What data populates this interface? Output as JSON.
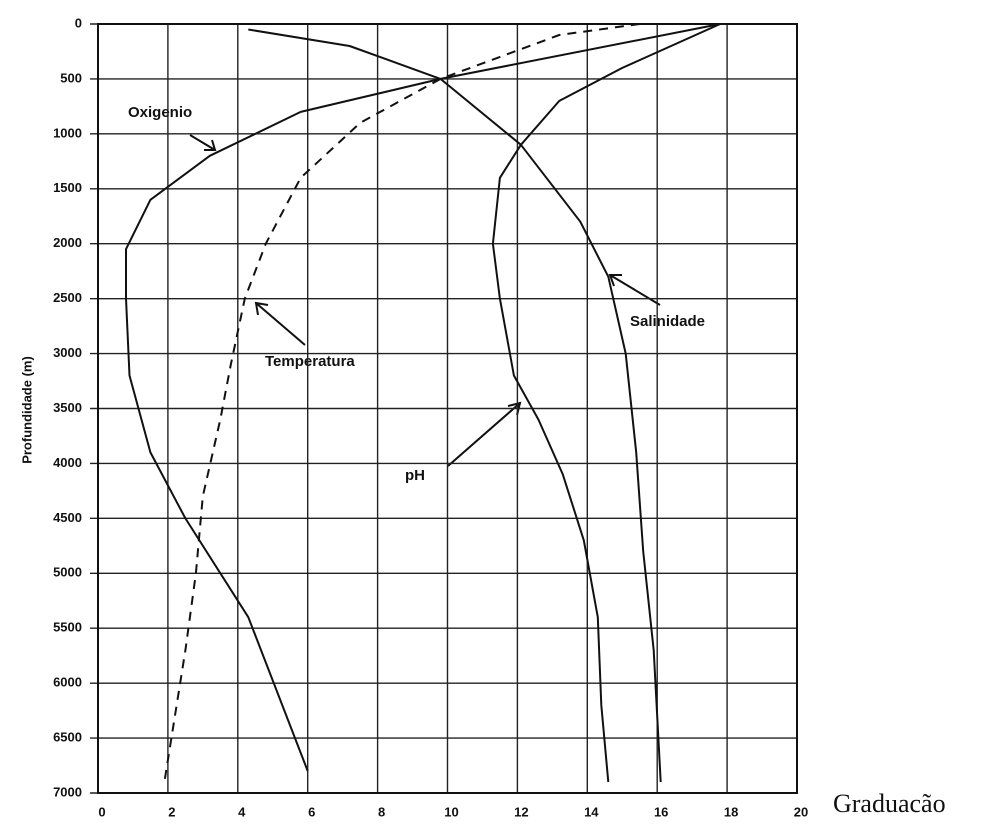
{
  "chart_data": {
    "type": "line",
    "y_label": "Profundidade (m)",
    "x_label": "Graduacão",
    "xlim": [
      0,
      20
    ],
    "xticks": [
      0,
      2,
      4,
      6,
      8,
      10,
      12,
      14,
      16,
      18,
      20
    ],
    "ylim": [
      0,
      7000
    ],
    "yticks": [
      0,
      500,
      1000,
      1500,
      2000,
      2500,
      3000,
      3500,
      4000,
      4500,
      5000,
      5500,
      6000,
      6500,
      7000
    ],
    "y_inverted": true,
    "grid": true,
    "series": [
      {
        "name": "Oxigenio",
        "color": "#111111",
        "dashed": false,
        "x": [
          17.8,
          9.8,
          5.8,
          3.2,
          1.5,
          0.8,
          0.8,
          0.9,
          1.5,
          2.5,
          4.3,
          6.0
        ],
        "values": [
          0,
          500,
          800,
          1200,
          1600,
          2050,
          2500,
          3200,
          3900,
          4500,
          5400,
          6800
        ]
      },
      {
        "name": "Temperatura",
        "color": "#111111",
        "dashed": true,
        "x": [
          15.5,
          13.2,
          9.8,
          7.5,
          5.8,
          4.8,
          4.2,
          3.8,
          3.5,
          3.0,
          2.8,
          2.5,
          1.9
        ],
        "values": [
          0,
          100,
          500,
          900,
          1400,
          2000,
          2500,
          3100,
          3600,
          4300,
          5000,
          5700,
          6900
        ]
      },
      {
        "name": "Salinidade",
        "color": "#111111",
        "dashed": false,
        "x": [
          4.3,
          7.2,
          9.8,
          12.1,
          13.8,
          14.6,
          15.1,
          15.4,
          15.6,
          15.9,
          16.1
        ],
        "values": [
          50,
          200,
          500,
          1100,
          1800,
          2300,
          3000,
          3900,
          4800,
          5700,
          6900
        ]
      },
      {
        "name": "pH",
        "color": "#111111",
        "dashed": false,
        "x": [
          17.8,
          15.0,
          13.2,
          12.1,
          11.5,
          11.3,
          11.5,
          11.9,
          12.6,
          13.3,
          13.9,
          14.3,
          14.4,
          14.6
        ],
        "values": [
          0,
          400,
          700,
          1100,
          1400,
          2000,
          2500,
          3200,
          3600,
          4100,
          4700,
          5400,
          6200,
          6900
        ]
      }
    ]
  }
}
